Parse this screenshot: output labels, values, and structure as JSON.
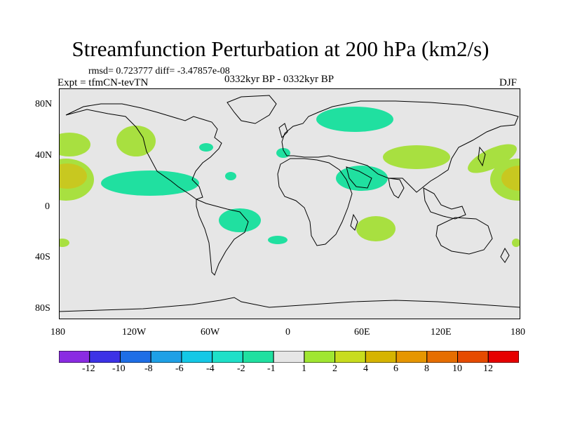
{
  "title": "Streamfunction Perturbation at 200 hPa (km2/s)",
  "stats_line": "rmsd= 0.723777 diff= -3.47857e-08",
  "experiment_line": "Expt = tfmCN-tevTN",
  "period_line": "0332kyr BP - 0332kyr BP",
  "season": "DJF",
  "map": {
    "projection": "cylindrical-equidistant",
    "background_color": "#e6e6e6",
    "lat_tick_labels": [
      "80N",
      "40N",
      "0",
      "40S",
      "80S"
    ],
    "lon_tick_labels": [
      "180",
      "120W",
      "60W",
      "0",
      "60E",
      "120E",
      "180"
    ],
    "shading_colors": {
      "-2": "#20e0a0",
      "-1": "#e6e6e6",
      "1": "#a8e040",
      "2": "#c8c820",
      "4": "#d4aa00"
    }
  },
  "colorbar": {
    "colors": [
      "#8a2be2",
      "#3c32e6",
      "#1e6ee6",
      "#1ea0e6",
      "#14c8e6",
      "#1ee0c8",
      "#20e0a0",
      "#e6e6e6",
      "#a0e632",
      "#c8dc1e",
      "#d6b400",
      "#e69600",
      "#e66e00",
      "#e64b00",
      "#e60000"
    ],
    "labels": [
      "-12",
      "-10",
      "-8",
      "-6",
      "-4",
      "-2",
      "-1",
      "1",
      "2",
      "4",
      "6",
      "8",
      "10",
      "12"
    ]
  }
}
